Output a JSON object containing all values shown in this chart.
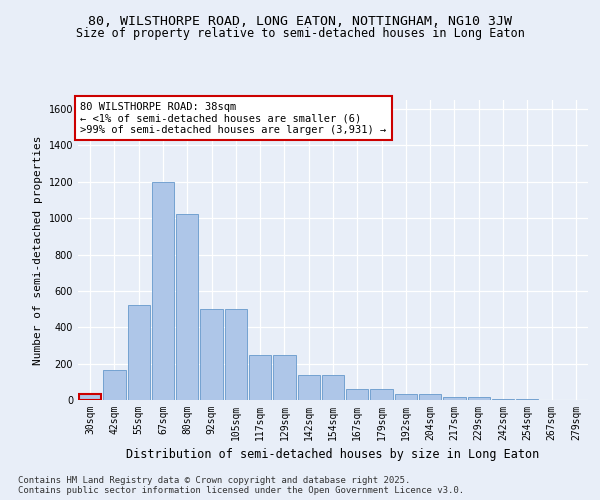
{
  "title_line1": "80, WILSTHORPE ROAD, LONG EATON, NOTTINGHAM, NG10 3JW",
  "title_line2": "Size of property relative to semi-detached houses in Long Eaton",
  "xlabel": "Distribution of semi-detached houses by size in Long Eaton",
  "ylabel": "Number of semi-detached properties",
  "footnote": "Contains HM Land Registry data © Crown copyright and database right 2025.\nContains public sector information licensed under the Open Government Licence v3.0.",
  "bar_labels": [
    "30sqm",
    "42sqm",
    "55sqm",
    "67sqm",
    "80sqm",
    "92sqm",
    "105sqm",
    "117sqm",
    "129sqm",
    "142sqm",
    "154sqm",
    "167sqm",
    "179sqm",
    "192sqm",
    "204sqm",
    "217sqm",
    "229sqm",
    "242sqm",
    "254sqm",
    "267sqm",
    "279sqm"
  ],
  "bar_values": [
    35,
    165,
    525,
    1200,
    1025,
    500,
    500,
    245,
    245,
    140,
    140,
    62,
    62,
    35,
    35,
    18,
    18,
    8,
    8,
    2,
    2
  ],
  "bar_color": "#aec6e8",
  "bar_edge_color": "#6699cc",
  "highlight_color": "#cc0000",
  "annotation_text": "80 WILSTHORPE ROAD: 38sqm\n← <1% of semi-detached houses are smaller (6)\n>99% of semi-detached houses are larger (3,931) →",
  "annotation_box_color": "white",
  "annotation_border_color": "#cc0000",
  "ylim": [
    0,
    1650
  ],
  "yticks": [
    0,
    200,
    400,
    600,
    800,
    1000,
    1200,
    1400,
    1600
  ],
  "background_color": "#e8eef8",
  "plot_bg_color": "#e8eef8",
  "grid_color": "white",
  "title_fontsize": 9.5,
  "subtitle_fontsize": 8.5,
  "ylabel_fontsize": 8,
  "xlabel_fontsize": 8.5,
  "tick_fontsize": 7,
  "annotation_fontsize": 7.5,
  "footnote_fontsize": 6.5
}
